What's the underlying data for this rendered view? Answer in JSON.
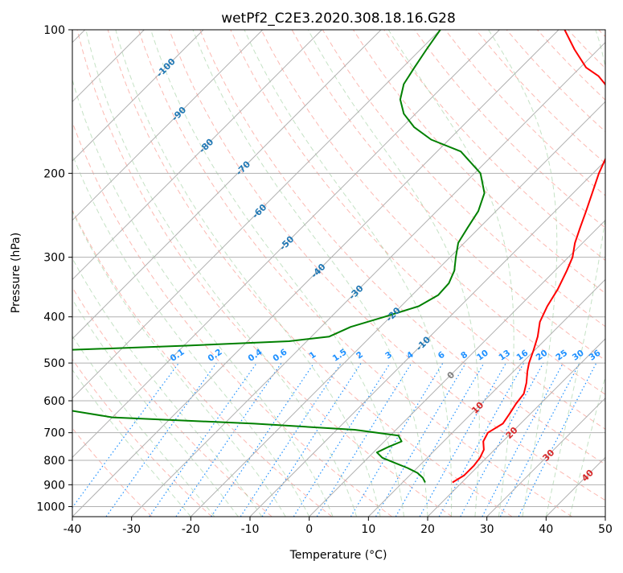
{
  "chart_data": {
    "type": "skew-t",
    "title": "wetPf2_C2E3.2020.308.18.16.G28",
    "xlabel": "Temperature (°C)",
    "ylabel": "Pressure (hPa)",
    "xlim": [
      -40,
      50
    ],
    "ylim": [
      1050,
      100
    ],
    "y_scale": "log",
    "grid": true,
    "x_ticks": [
      -40,
      -30,
      -20,
      -10,
      0,
      10,
      20,
      30,
      40,
      50
    ],
    "y_ticks": [
      100,
      200,
      300,
      400,
      500,
      600,
      700,
      800,
      900,
      1000
    ],
    "isotherm_labels": [
      "-100",
      "-90",
      "-80",
      "-70",
      "-60",
      "-50",
      "-40",
      "-30",
      "-20",
      "-10",
      "0",
      "10",
      "20",
      "30",
      "40"
    ],
    "mixing_ratio_labels": [
      "0.1",
      "0.2",
      "0.4",
      "0.6",
      "1",
      "1.5",
      "2",
      "3",
      "4",
      "6",
      "8",
      "10",
      "13",
      "16",
      "20",
      "25",
      "30",
      "36"
    ],
    "colors": {
      "temperature": "#ff0000",
      "dewpoint": "#008000",
      "isotherm_label_cold": "#1f77b4",
      "isotherm_label_zero": "#808080",
      "isotherm_label_warm": "#d62728",
      "mixing_ratio": "#1e90ff",
      "dry_adiabat": "#fa8072",
      "moist_adiabat": "#7fbf7f",
      "grid": "#b0b0b0"
    },
    "series": [
      {
        "kind": "temperature",
        "points": [
          [
            890,
            18.4
          ],
          [
            860,
            19.2
          ],
          [
            820,
            19.2
          ],
          [
            790,
            18.9
          ],
          [
            760,
            18.2
          ],
          [
            730,
            16.7
          ],
          [
            700,
            16.0
          ],
          [
            670,
            17.0
          ],
          [
            640,
            16.5
          ],
          [
            610,
            15.9
          ],
          [
            580,
            15.5
          ],
          [
            550,
            14.1
          ],
          [
            520,
            12.3
          ],
          [
            500,
            11.2
          ],
          [
            470,
            9.8
          ],
          [
            440,
            8.2
          ],
          [
            410,
            6.1
          ],
          [
            380,
            4.7
          ],
          [
            350,
            3.6
          ],
          [
            320,
            2.0
          ],
          [
            300,
            0.7
          ],
          [
            280,
            -1.3
          ],
          [
            260,
            -3.0
          ],
          [
            240,
            -4.8
          ],
          [
            220,
            -6.8
          ],
          [
            200,
            -9.0
          ],
          [
            180,
            -11.0
          ],
          [
            160,
            -14.5
          ],
          [
            150,
            -16.5
          ],
          [
            140,
            -19.0
          ],
          [
            130,
            -23.0
          ],
          [
            125,
            -25.5
          ],
          [
            120,
            -29.0
          ],
          [
            110,
            -34.0
          ],
          [
            100,
            -39.0
          ]
        ]
      },
      {
        "kind": "dewpoint",
        "points": [
          [
            890,
            13.8
          ],
          [
            870,
            12.6
          ],
          [
            850,
            10.9
          ],
          [
            830,
            8.4
          ],
          [
            810,
            5.4
          ],
          [
            790,
            2.4
          ],
          [
            770,
            0.6
          ],
          [
            750,
            1.6
          ],
          [
            730,
            2.9
          ],
          [
            710,
            1.4
          ],
          [
            690,
            -7.0
          ],
          [
            670,
            -25.0
          ],
          [
            650,
            -50.0
          ],
          [
            600,
            -70.0
          ],
          [
            550,
            -80.0
          ],
          [
            520,
            -82.0
          ],
          [
            510,
            -100.0
          ],
          [
            500,
            -120.0
          ],
          [
            490,
            -110.0
          ],
          [
            480,
            -90.0
          ],
          [
            470,
            -70.0
          ],
          [
            460,
            -50.0
          ],
          [
            450,
            -33.0
          ],
          [
            440,
            -27.0
          ],
          [
            420,
            -25.0
          ],
          [
            400,
            -21.0
          ],
          [
            380,
            -17.0
          ],
          [
            360,
            -15.6
          ],
          [
            340,
            -15.8
          ],
          [
            320,
            -17.0
          ],
          [
            300,
            -19.0
          ],
          [
            280,
            -21.0
          ],
          [
            260,
            -22.0
          ],
          [
            240,
            -23.0
          ],
          [
            220,
            -25.0
          ],
          [
            200,
            -29.0
          ],
          [
            180,
            -36.0
          ],
          [
            170,
            -43.0
          ],
          [
            160,
            -48.0
          ],
          [
            150,
            -52.0
          ],
          [
            140,
            -55.0
          ],
          [
            130,
            -57.0
          ],
          [
            120,
            -58.0
          ],
          [
            110,
            -59.0
          ],
          [
            100,
            -60.0
          ]
        ]
      }
    ]
  }
}
